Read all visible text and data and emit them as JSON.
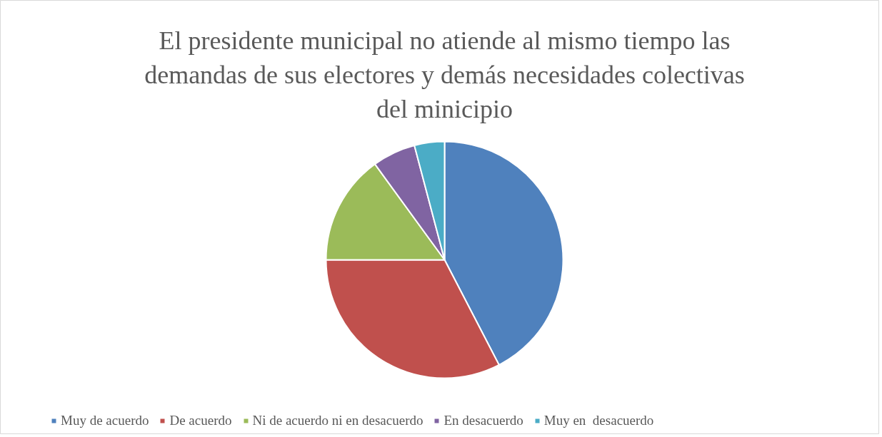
{
  "chart_data": {
    "type": "pie",
    "title": "El presidente municipal no atiende al mismo tiempo las demandas de sus electores y demás necesidades colectivas del minicipio",
    "categories": [
      "Muy de acuerdo",
      "De acuerdo",
      "Ni de acuerdo ni en desacuerdo",
      "En desacuerdo",
      "Muy en  desacuerdo"
    ],
    "values": [
      42.4,
      32.6,
      15.0,
      5.9,
      4.1
    ],
    "colors": [
      "#4f81bd",
      "#c0504d",
      "#9bbb59",
      "#8064a2",
      "#4bacc6"
    ],
    "legend": "bottom"
  }
}
